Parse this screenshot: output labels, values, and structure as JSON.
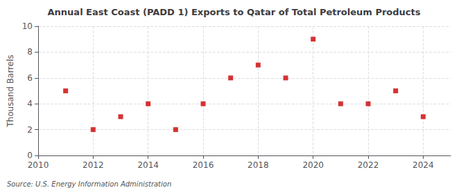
{
  "chart_data": {
    "type": "scatter",
    "title": "Annual East Coast (PADD 1) Exports to Qatar of Total Petroleum Products",
    "ylabel": "Thousand Barrels",
    "annotations": [
      "Source: U.S. Energy Information Administration"
    ],
    "x": [
      2011,
      2012,
      2013,
      2014,
      2015,
      2016,
      2017,
      2018,
      2019,
      2020,
      2021,
      2022,
      2023,
      2024
    ],
    "values": [
      5,
      2,
      3,
      4,
      2,
      4,
      6,
      7,
      6,
      9,
      4,
      4,
      5,
      3
    ],
    "color": "#cc0000",
    "marker": "square",
    "xlim": [
      2010,
      2025
    ],
    "ylim": [
      0,
      10
    ],
    "xticks": [
      2010,
      2012,
      2014,
      2016,
      2018,
      2020,
      2022,
      2024
    ],
    "yticks": [
      0,
      2,
      4,
      6,
      8,
      10
    ],
    "grid": true
  }
}
